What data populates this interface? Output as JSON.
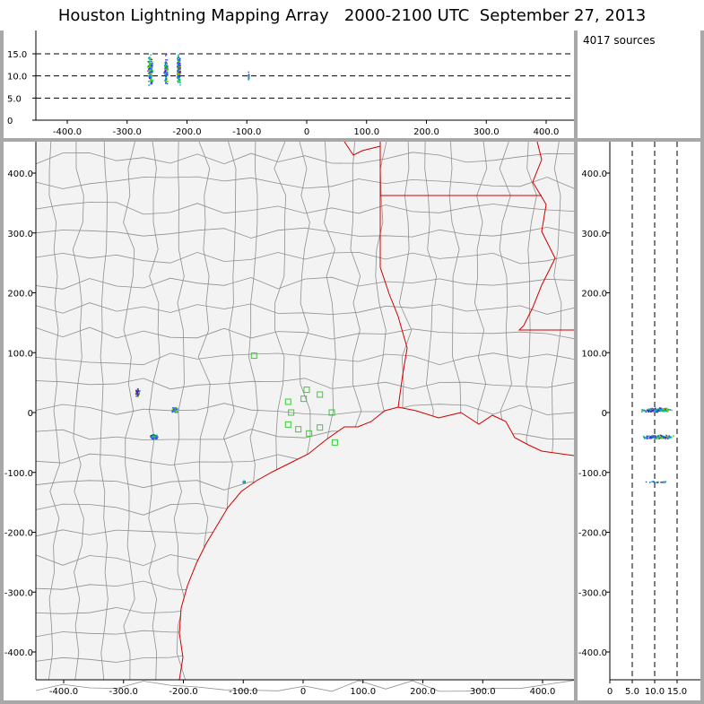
{
  "title": {
    "text": "Houston Lightning Mapping Array   2000-2100 UTC  September 27, 2013"
  },
  "info_panel": {
    "source_count_text": "4017 sources"
  },
  "colors": {
    "background_plot": "#f3f3f3",
    "frame": "#a8a8a8",
    "county_lines": "#8f8f8f",
    "state_coast": "#d00000",
    "station_markers": "#3acb3a"
  },
  "icons": {
    "station_marker": "green-square-station-marker"
  },
  "altitude_time_plot": {
    "y_ticks": [
      "15.0",
      "10.0",
      "5.0",
      "0"
    ],
    "x_ticks": [
      "-400.0",
      "-300.0",
      "-200.0",
      "-100.0",
      "0",
      "100.0",
      "200.0",
      "300.0",
      "400.0"
    ],
    "dashed_levels": [
      5.0,
      10.0,
      15.0
    ]
  },
  "map_plot": {
    "x_ticks": [
      "-400.0",
      "-300.0",
      "-200.0",
      "-100.0",
      "0",
      "100.0",
      "200.0",
      "300.0",
      "400.0"
    ],
    "y_ticks": [
      "400.0",
      "300.0",
      "200.0",
      "100.0",
      "0",
      "-100.0",
      "-200.0",
      "-300.0",
      "-400.0"
    ],
    "stations": [
      {
        "x": -82,
        "y": 95
      },
      {
        "x": -25,
        "y": 18
      },
      {
        "x": 6,
        "y": 38
      },
      {
        "x": 28,
        "y": 30
      },
      {
        "x": 1,
        "y": 23
      },
      {
        "x": -20,
        "y": 0
      },
      {
        "x": 48,
        "y": 0
      },
      {
        "x": -25,
        "y": -20
      },
      {
        "x": -8,
        "y": -28
      },
      {
        "x": 10,
        "y": -35
      },
      {
        "x": 28,
        "y": -25
      },
      {
        "x": 53,
        "y": -50
      }
    ]
  },
  "altitude_y_plot": {
    "x_ticks": [
      "0",
      "5.0",
      "10.0",
      "15.0"
    ],
    "y_ticks": [
      "400.0",
      "300.0",
      "200.0",
      "100.0",
      "0",
      "-100.0",
      "-200.0",
      "-300.0",
      "-400.0"
    ]
  }
}
